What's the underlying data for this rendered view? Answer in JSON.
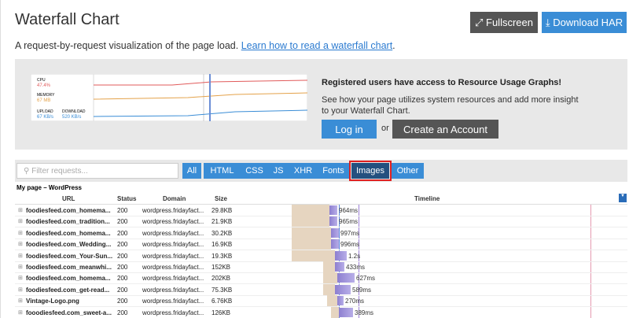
{
  "header": {
    "title": "Waterfall Chart",
    "fullscreen": "Fullscreen",
    "download": "Download HAR"
  },
  "intro": {
    "text": "A request-by-request visualization of the page load.",
    "link": "Learn how to read a waterfall chart",
    "suffix": "."
  },
  "promo": {
    "preview": {
      "cpu_label": "CPU",
      "cpu_value": "47.4%",
      "memory_label": "MEMORY",
      "memory_value": "67 MB",
      "upload_label": "UPLOAD",
      "upload_value": "67 KB/s",
      "download_label": "DOWNLOAD",
      "download_value": "520 KB/s"
    },
    "heading": "Registered users have access to Resource Usage Graphs!",
    "text": "See how your page utilizes system resources and add more insight to your Waterfall Chart.",
    "login": "Log in",
    "or": "or",
    "create": "Create an Account"
  },
  "filter": {
    "placeholder": "Filter requests...",
    "tabs": [
      "All",
      "HTML",
      "CSS",
      "JS",
      "XHR",
      "Fonts",
      "Images",
      "Other"
    ],
    "selected": "Images"
  },
  "table": {
    "group": "My page – WordPress",
    "columns": [
      "URL",
      "Status",
      "Domain",
      "Size",
      "Timeline"
    ],
    "rows": [
      [
        "foodiesfeed.com_homema...",
        "200",
        "wordpress.fridayfact...",
        "29.8KB",
        "964ms"
      ],
      [
        "foodiesfeed.com_tradition...",
        "200",
        "wordpress.fridayfact...",
        "21.9KB",
        "965ms"
      ],
      [
        "foodiesfeed.com_homema...",
        "200",
        "wordpress.fridayfact...",
        "30.2KB",
        "997ms"
      ],
      [
        "foodiesfeed.com_Wedding...",
        "200",
        "wordpress.fridayfact...",
        "16.9KB",
        "996ms"
      ],
      [
        "foodiesfeed.com_Your-Sun...",
        "200",
        "wordpress.fridayfact...",
        "19.3KB",
        "1.2s"
      ],
      [
        "foodiesfeed.com_meanwhi...",
        "200",
        "wordpress.fridayfact...",
        "152KB",
        "433ms"
      ],
      [
        "foodiesfeed.com_homema...",
        "200",
        "wordpress.fridayfact...",
        "202KB",
        "627ms"
      ],
      [
        "foodiesfeed.com_get-read...",
        "200",
        "wordpress.fridayfact...",
        "75.3KB",
        "589ms"
      ],
      [
        "Vintage-Logo.png",
        "200",
        "wordpress.fridayfact...",
        "6.76KB",
        "270ms"
      ],
      [
        "fooodiesfeed.com_sweet-a...",
        "200",
        "wordpress.fridayfact...",
        "126KB",
        "389ms"
      ]
    ]
  }
}
